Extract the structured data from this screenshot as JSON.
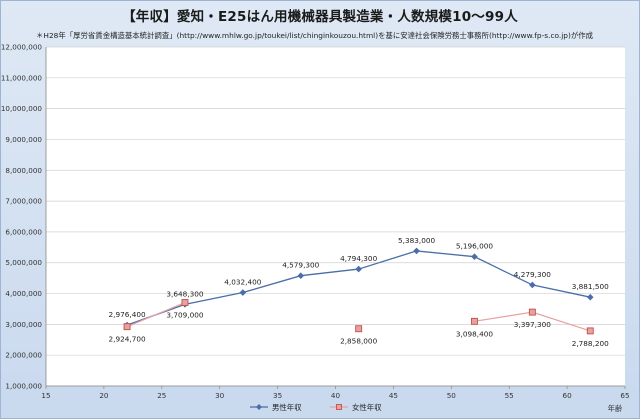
{
  "title": "【年収】愛知・E25はん用機械器具製造業・人数規模10～99人",
  "note": "＊H28年「厚労省賃金構造基本統計調査」(http://www.mhlw.go.jp/toukei/list/chinginkouzou.html)を基に安達社会保険労務士事務所(http://www.fp-s.co.jp)が作成",
  "colors": {
    "male": "#4a6ea8",
    "female": "#c0504d",
    "female_fill": "#e8a19f",
    "plot_bg": "#ffffff",
    "grid": "#d0d0d0"
  },
  "chart_data": {
    "type": "line",
    "xlabel": "年齢",
    "ylabel": "",
    "xlim": [
      15,
      65
    ],
    "ylim": [
      1000000,
      12000000
    ],
    "x_ticks": [
      "15",
      "20",
      "25",
      "30",
      "35",
      "40",
      "45",
      "50",
      "55",
      "60",
      "65"
    ],
    "y_ticks": [
      "1,000,000",
      "2,000,000",
      "3,000,000",
      "4,000,000",
      "5,000,000",
      "6,000,000",
      "7,000,000",
      "8,000,000",
      "9,000,000",
      "10,000,000",
      "11,000,000",
      "12,000,000"
    ],
    "grid": true,
    "legend_position": "bottom",
    "series": [
      {
        "name": "男性年収",
        "x": [
          22,
          27,
          32,
          37,
          42,
          47,
          52,
          57,
          62
        ],
        "values": [
          2976400,
          3648300,
          4032400,
          4579300,
          4794300,
          5383000,
          5196000,
          4279300,
          3881500
        ],
        "labels": [
          "2,976,400",
          "3,648,300",
          "4,032,400",
          "4,579,300",
          "4,794,300",
          "5,383,000",
          "5,196,000",
          "4,279,300",
          "3,881,500"
        ],
        "marker": "diamond"
      },
      {
        "name": "女性年収",
        "x": [
          22,
          27,
          42,
          52,
          57,
          62
        ],
        "values": [
          2924700,
          3709000,
          2858000,
          3098400,
          3397300,
          2788200
        ],
        "labels": [
          "2,924,700",
          "3,709,000",
          "2,858,000",
          "3,098,400",
          "3,397,300",
          "2,788,200"
        ],
        "marker": "square",
        "line_segments": [
          [
            0,
            1
          ],
          [
            3,
            4,
            5
          ]
        ]
      }
    ]
  }
}
